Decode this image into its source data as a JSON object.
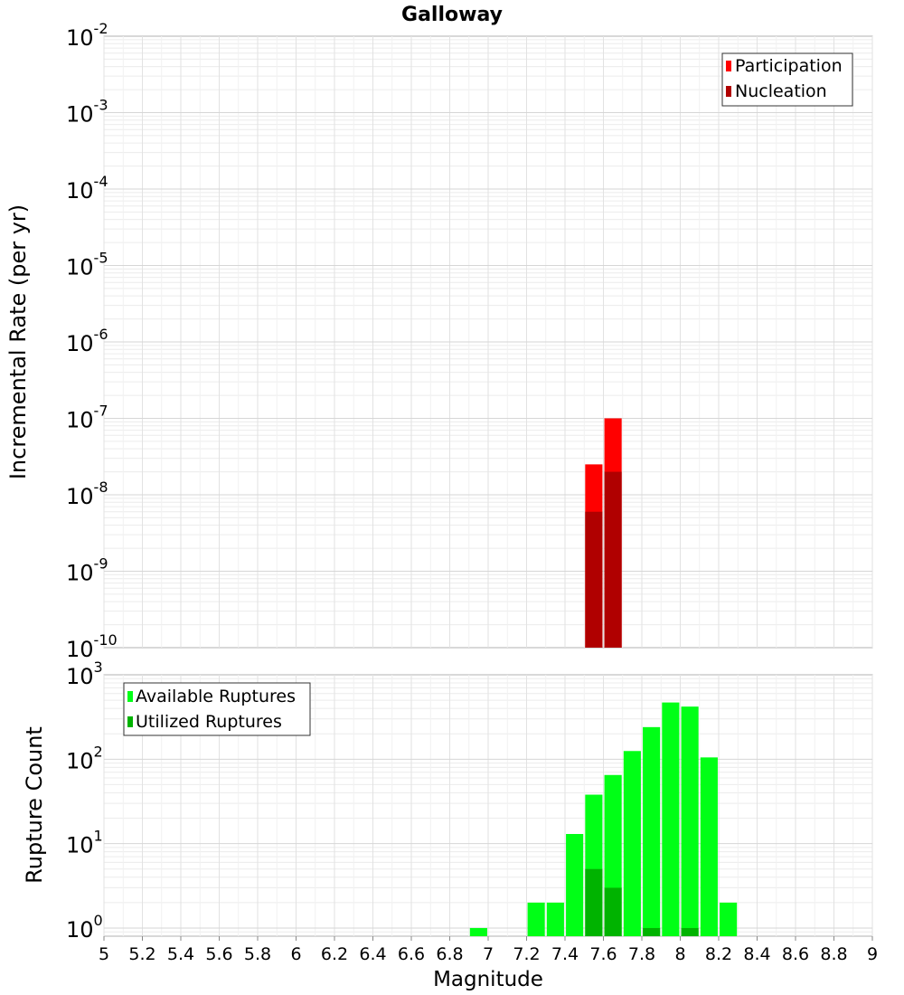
{
  "chart_data": [
    {
      "type": "bar",
      "title": "Galloway",
      "ylabel": "Incremental Rate (per yr)",
      "y_scale": "log",
      "ylim": [
        1e-10,
        0.01
      ],
      "xlim": [
        5,
        9
      ],
      "bar_width": 0.09,
      "grid": true,
      "legend_position": "top-right",
      "series": [
        {
          "name": "Participation",
          "color": "#ff0000",
          "x": [
            7.55,
            7.65
          ],
          "values": [
            2.5e-08,
            1e-07
          ]
        },
        {
          "name": "Nucleation",
          "color": "#b00000",
          "x": [
            7.55,
            7.65
          ],
          "values": [
            6e-09,
            2e-08
          ]
        }
      ],
      "y_ticks": [
        {
          "value": 0.01,
          "mantissa": "10",
          "exp": "-2"
        },
        {
          "value": 0.001,
          "mantissa": "10",
          "exp": "-3"
        },
        {
          "value": 0.0001,
          "mantissa": "10",
          "exp": "-4"
        },
        {
          "value": 1e-05,
          "mantissa": "10",
          "exp": "-5"
        },
        {
          "value": 1e-06,
          "mantissa": "10",
          "exp": "-6"
        },
        {
          "value": 1e-07,
          "mantissa": "10",
          "exp": "-7"
        },
        {
          "value": 1e-08,
          "mantissa": "10",
          "exp": "-8"
        },
        {
          "value": 1e-09,
          "mantissa": "10",
          "exp": "-9"
        },
        {
          "value": 1e-10,
          "mantissa": "10",
          "exp": "-10"
        }
      ]
    },
    {
      "type": "bar",
      "ylabel": "Rupture Count",
      "xlabel": "Magnitude",
      "y_scale": "log",
      "ylim": [
        0.8,
        1000
      ],
      "xlim": [
        5,
        9
      ],
      "bar_width": 0.09,
      "grid": true,
      "legend_position": "top-left",
      "series": [
        {
          "name": "Available Ruptures",
          "color": "#00ff16",
          "x": [
            6.95,
            7.25,
            7.35,
            7.45,
            7.55,
            7.65,
            7.75,
            7.85,
            7.95,
            8.05,
            8.15,
            8.25
          ],
          "values": [
            1,
            2,
            2,
            13,
            38,
            65,
            125,
            240,
            470,
            420,
            105,
            2
          ]
        },
        {
          "name": "Utilized Ruptures",
          "color": "#00b300",
          "x": [
            7.55,
            7.65,
            7.85,
            8.05
          ],
          "values": [
            5,
            3,
            1,
            1
          ]
        }
      ],
      "y_ticks": [
        {
          "value": 1000,
          "mantissa": "10",
          "exp": "3"
        },
        {
          "value": 100,
          "mantissa": "10",
          "exp": "2"
        },
        {
          "value": 10,
          "mantissa": "10",
          "exp": "1"
        },
        {
          "value": 1,
          "mantissa": "10",
          "exp": "0"
        }
      ],
      "x_ticks": [
        "5",
        "5.2",
        "5.4",
        "5.6",
        "5.8",
        "6",
        "6.2",
        "6.4",
        "6.6",
        "6.8",
        "7",
        "7.2",
        "7.4",
        "7.6",
        "7.8",
        "8",
        "8.2",
        "8.4",
        "8.6",
        "8.8",
        "9"
      ]
    }
  ]
}
